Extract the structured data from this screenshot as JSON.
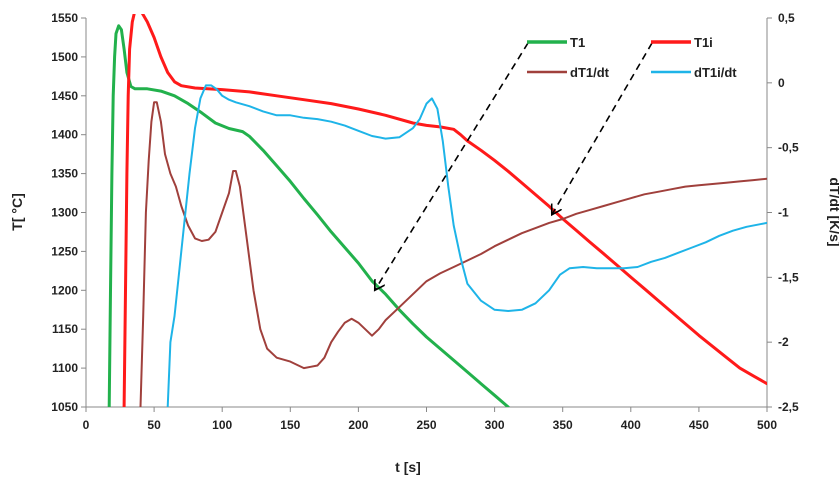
{
  "chart_data": {
    "type": "line",
    "xlabel": "t [s]",
    "ylabel_left": "T[ °C]",
    "ylabel_right": "dT/dt [K/s]",
    "xlim": [
      0,
      500
    ],
    "ylim_left": [
      1050,
      1550
    ],
    "ylim_right": [
      -2.5,
      0.5
    ],
    "grid": false,
    "legend_position": "top-right",
    "x_ticks": [
      "0",
      "50",
      "100",
      "150",
      "200",
      "250",
      "300",
      "350",
      "400",
      "450",
      "500"
    ],
    "y_ticks_left": [
      "1050",
      "1100",
      "1150",
      "1200",
      "1250",
      "1300",
      "1350",
      "1400",
      "1450",
      "1500",
      "1550"
    ],
    "y_ticks_right": [
      "-2,5",
      "-2",
      "-1,5",
      "-1",
      "-0,5",
      "0",
      "0,5"
    ],
    "series": [
      {
        "name": "T1",
        "axis": "left",
        "color": "#22b14c",
        "points": [
          [
            17,
            1050
          ],
          [
            18,
            1200
          ],
          [
            19,
            1350
          ],
          [
            20,
            1450
          ],
          [
            21,
            1500
          ],
          [
            22,
            1530
          ],
          [
            24,
            1540
          ],
          [
            26,
            1535
          ],
          [
            28,
            1510
          ],
          [
            30,
            1480
          ],
          [
            33,
            1462
          ],
          [
            36,
            1459
          ],
          [
            45,
            1459
          ],
          [
            55,
            1456
          ],
          [
            65,
            1450
          ],
          [
            75,
            1440
          ],
          [
            85,
            1428
          ],
          [
            95,
            1415
          ],
          [
            105,
            1408
          ],
          [
            115,
            1404
          ],
          [
            120,
            1398
          ],
          [
            130,
            1380
          ],
          [
            140,
            1360
          ],
          [
            150,
            1340
          ],
          [
            160,
            1318
          ],
          [
            170,
            1297
          ],
          [
            180,
            1275
          ],
          [
            190,
            1255
          ],
          [
            200,
            1235
          ],
          [
            210,
            1212
          ],
          [
            220,
            1195
          ],
          [
            230,
            1175
          ],
          [
            240,
            1157
          ],
          [
            250,
            1140
          ],
          [
            260,
            1125
          ],
          [
            270,
            1110
          ],
          [
            280,
            1095
          ],
          [
            290,
            1080
          ],
          [
            300,
            1065
          ],
          [
            310,
            1050
          ]
        ]
      },
      {
        "name": "T1i",
        "axis": "left",
        "color": "#ff1a1a",
        "points": [
          [
            28,
            1050
          ],
          [
            29,
            1200
          ],
          [
            30,
            1350
          ],
          [
            31,
            1450
          ],
          [
            32,
            1510
          ],
          [
            34,
            1545
          ],
          [
            36,
            1560
          ],
          [
            40,
            1560
          ],
          [
            45,
            1545
          ],
          [
            50,
            1525
          ],
          [
            55,
            1500
          ],
          [
            60,
            1480
          ],
          [
            65,
            1468
          ],
          [
            70,
            1463
          ],
          [
            80,
            1460
          ],
          [
            100,
            1458
          ],
          [
            120,
            1455
          ],
          [
            140,
            1450
          ],
          [
            160,
            1445
          ],
          [
            180,
            1440
          ],
          [
            200,
            1433
          ],
          [
            220,
            1425
          ],
          [
            240,
            1415
          ],
          [
            250,
            1412
          ],
          [
            260,
            1410
          ],
          [
            270,
            1407
          ],
          [
            275,
            1400
          ],
          [
            280,
            1392
          ],
          [
            290,
            1380
          ],
          [
            300,
            1367
          ],
          [
            310,
            1353
          ],
          [
            320,
            1338
          ],
          [
            330,
            1323
          ],
          [
            340,
            1308
          ],
          [
            350,
            1292
          ],
          [
            360,
            1277
          ],
          [
            370,
            1262
          ],
          [
            380,
            1247
          ],
          [
            390,
            1232
          ],
          [
            400,
            1217
          ],
          [
            410,
            1202
          ],
          [
            420,
            1187
          ],
          [
            430,
            1172
          ],
          [
            440,
            1157
          ],
          [
            450,
            1142
          ],
          [
            460,
            1128
          ],
          [
            470,
            1114
          ],
          [
            480,
            1100
          ],
          [
            490,
            1090
          ],
          [
            500,
            1080
          ]
        ]
      },
      {
        "name": "dT1/dt",
        "axis": "right",
        "color": "#a0403c",
        "points": [
          [
            40,
            -2.5
          ],
          [
            42,
            -1.8
          ],
          [
            44,
            -1.0
          ],
          [
            46,
            -0.6
          ],
          [
            48,
            -0.3
          ],
          [
            50,
            -0.15
          ],
          [
            52,
            -0.15
          ],
          [
            55,
            -0.3
          ],
          [
            58,
            -0.55
          ],
          [
            62,
            -0.7
          ],
          [
            66,
            -0.8
          ],
          [
            70,
            -0.95
          ],
          [
            75,
            -1.1
          ],
          [
            80,
            -1.2
          ],
          [
            85,
            -1.22
          ],
          [
            90,
            -1.21
          ],
          [
            95,
            -1.15
          ],
          [
            100,
            -1.0
          ],
          [
            105,
            -0.85
          ],
          [
            108,
            -0.68
          ],
          [
            110,
            -0.68
          ],
          [
            113,
            -0.8
          ],
          [
            118,
            -1.2
          ],
          [
            123,
            -1.6
          ],
          [
            128,
            -1.9
          ],
          [
            133,
            -2.05
          ],
          [
            140,
            -2.12
          ],
          [
            150,
            -2.15
          ],
          [
            160,
            -2.2
          ],
          [
            165,
            -2.19
          ],
          [
            170,
            -2.18
          ],
          [
            175,
            -2.12
          ],
          [
            180,
            -2.0
          ],
          [
            185,
            -1.92
          ],
          [
            190,
            -1.85
          ],
          [
            195,
            -1.82
          ],
          [
            200,
            -1.85
          ],
          [
            205,
            -1.9
          ],
          [
            210,
            -1.95
          ],
          [
            215,
            -1.9
          ],
          [
            220,
            -1.83
          ],
          [
            230,
            -1.73
          ],
          [
            240,
            -1.63
          ],
          [
            250,
            -1.53
          ],
          [
            260,
            -1.47
          ],
          [
            270,
            -1.42
          ],
          [
            280,
            -1.37
          ],
          [
            290,
            -1.32
          ],
          [
            300,
            -1.26
          ],
          [
            310,
            -1.21
          ],
          [
            320,
            -1.16
          ],
          [
            330,
            -1.12
          ],
          [
            340,
            -1.08
          ],
          [
            350,
            -1.05
          ],
          [
            360,
            -1.01
          ],
          [
            370,
            -0.98
          ],
          [
            380,
            -0.95
          ],
          [
            390,
            -0.92
          ],
          [
            400,
            -0.89
          ],
          [
            410,
            -0.86
          ],
          [
            420,
            -0.84
          ],
          [
            430,
            -0.82
          ],
          [
            440,
            -0.8
          ],
          [
            450,
            -0.79
          ],
          [
            460,
            -0.78
          ],
          [
            470,
            -0.77
          ],
          [
            480,
            -0.76
          ],
          [
            490,
            -0.75
          ],
          [
            500,
            -0.74
          ]
        ]
      },
      {
        "name": "dT1i/dt",
        "axis": "right",
        "color": "#1eb4e8",
        "points": [
          [
            60,
            -2.5
          ],
          [
            62,
            -2.0
          ],
          [
            65,
            -1.8
          ],
          [
            68,
            -1.5
          ],
          [
            70,
            -1.3
          ],
          [
            73,
            -1.0
          ],
          [
            76,
            -0.7
          ],
          [
            80,
            -0.35
          ],
          [
            84,
            -0.12
          ],
          [
            88,
            -0.02
          ],
          [
            92,
            -0.02
          ],
          [
            96,
            -0.05
          ],
          [
            100,
            -0.1
          ],
          [
            105,
            -0.13
          ],
          [
            110,
            -0.15
          ],
          [
            120,
            -0.18
          ],
          [
            130,
            -0.22
          ],
          [
            140,
            -0.25
          ],
          [
            150,
            -0.25
          ],
          [
            160,
            -0.27
          ],
          [
            170,
            -0.28
          ],
          [
            180,
            -0.3
          ],
          [
            190,
            -0.33
          ],
          [
            200,
            -0.37
          ],
          [
            210,
            -0.41
          ],
          [
            220,
            -0.43
          ],
          [
            230,
            -0.42
          ],
          [
            240,
            -0.35
          ],
          [
            245,
            -0.28
          ],
          [
            250,
            -0.16
          ],
          [
            254,
            -0.12
          ],
          [
            258,
            -0.2
          ],
          [
            262,
            -0.45
          ],
          [
            266,
            -0.8
          ],
          [
            270,
            -1.1
          ],
          [
            275,
            -1.35
          ],
          [
            280,
            -1.55
          ],
          [
            290,
            -1.68
          ],
          [
            300,
            -1.75
          ],
          [
            310,
            -1.76
          ],
          [
            320,
            -1.75
          ],
          [
            330,
            -1.7
          ],
          [
            340,
            -1.6
          ],
          [
            348,
            -1.48
          ],
          [
            355,
            -1.43
          ],
          [
            365,
            -1.42
          ],
          [
            375,
            -1.43
          ],
          [
            385,
            -1.43
          ],
          [
            395,
            -1.43
          ],
          [
            405,
            -1.42
          ],
          [
            415,
            -1.38
          ],
          [
            425,
            -1.35
          ],
          [
            435,
            -1.31
          ],
          [
            445,
            -1.27
          ],
          [
            455,
            -1.23
          ],
          [
            465,
            -1.18
          ],
          [
            475,
            -1.14
          ],
          [
            485,
            -1.11
          ],
          [
            495,
            -1.09
          ],
          [
            500,
            -1.08
          ]
        ]
      }
    ],
    "annotations": [
      {
        "type": "dashed-arrow",
        "from_series": "T1",
        "points_to": [
          212,
          1200
        ]
      },
      {
        "type": "dashed-arrow",
        "from_series": "T1i",
        "points_to": [
          342,
          1297
        ]
      }
    ]
  }
}
